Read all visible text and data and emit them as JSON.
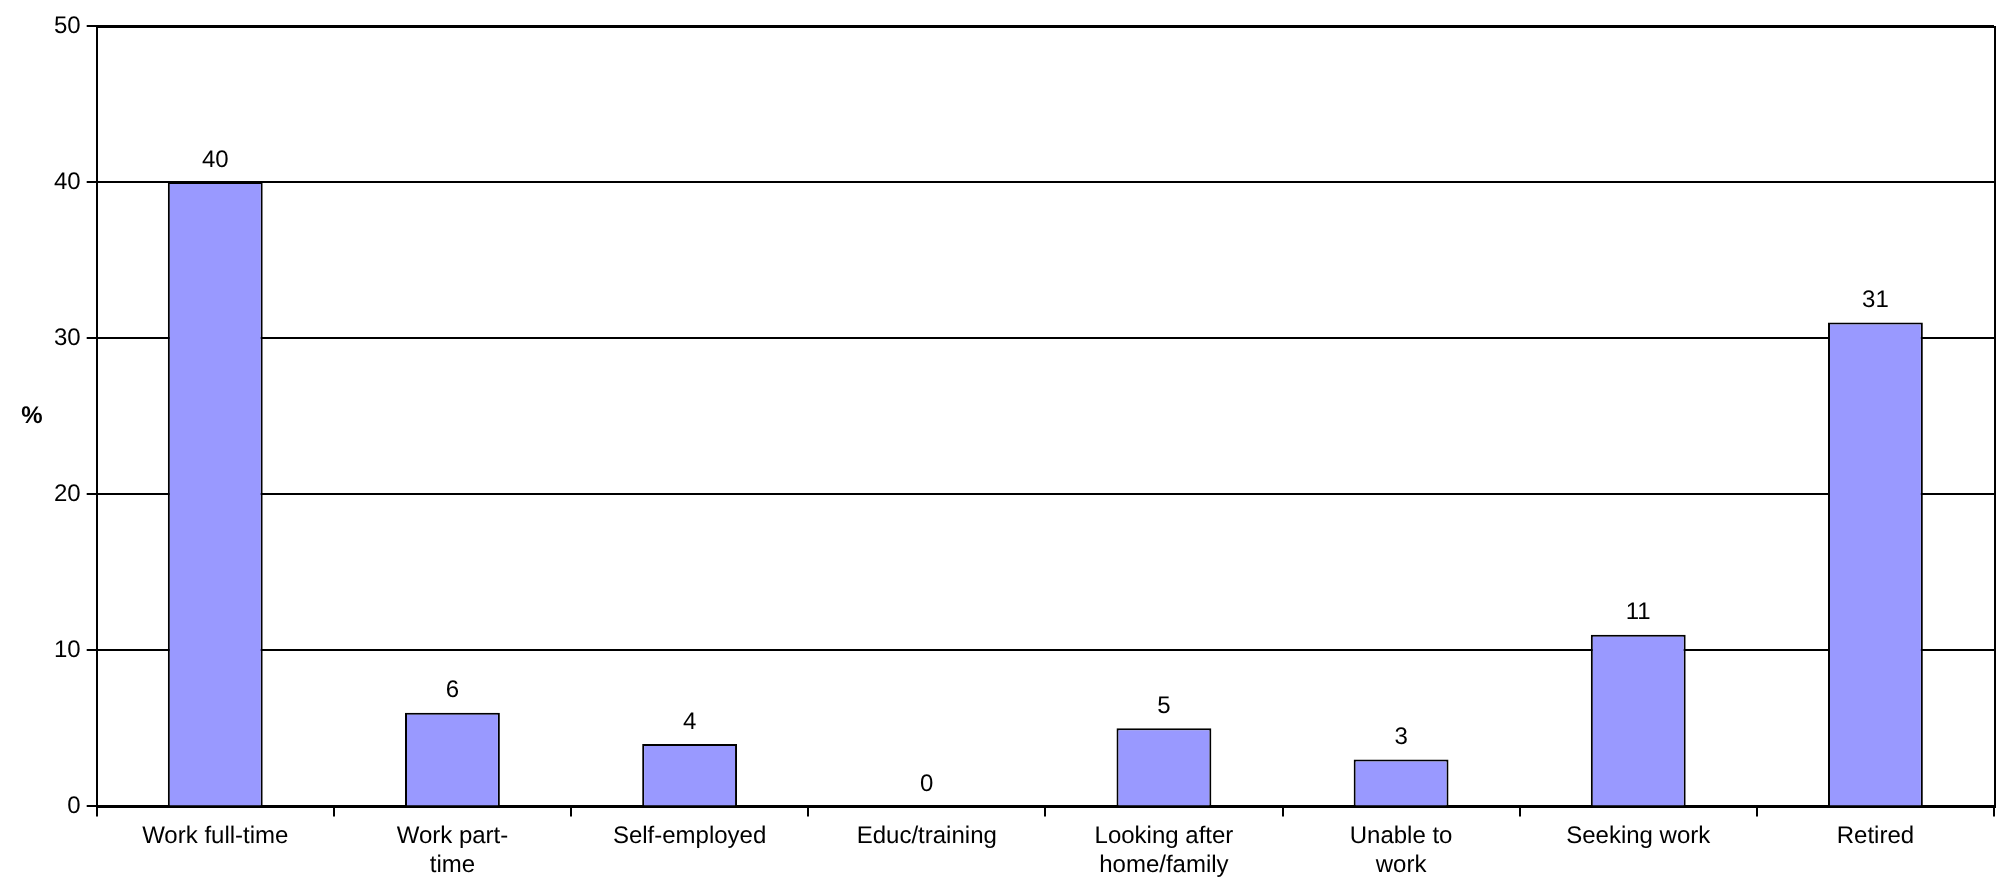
{
  "chart_data": {
    "type": "bar",
    "ylabel": "%",
    "categories": [
      "Work full-time",
      "Work part-time",
      "Self-employed",
      "Educ/training",
      "Looking after home/family",
      "Unable to work",
      "Seeking work",
      "Retired"
    ],
    "values": [
      40,
      6,
      4,
      0,
      5,
      3,
      11,
      31
    ],
    "color": "#9999ff",
    "ylim": [
      0,
      50
    ],
    "yticks": [
      0,
      10,
      20,
      30,
      40,
      50
    ],
    "grid": "y",
    "legend": false,
    "data_labels": true
  }
}
